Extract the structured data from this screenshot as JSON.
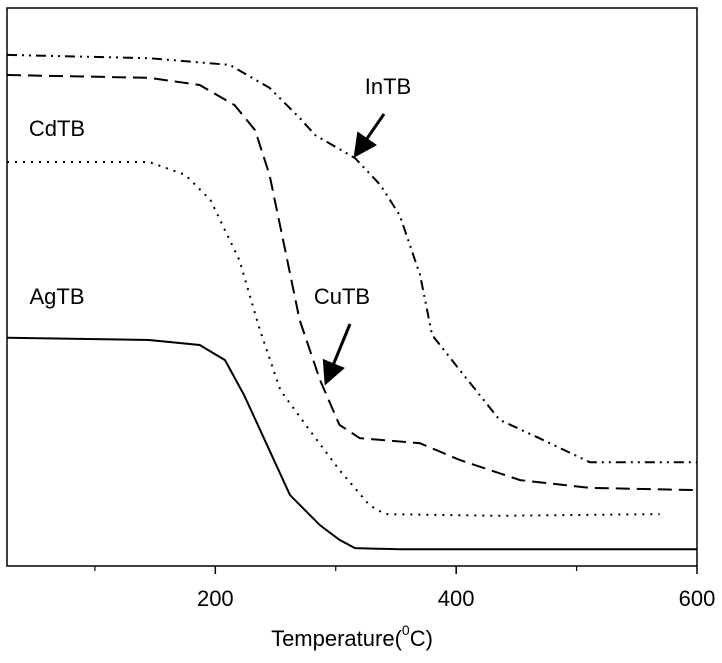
{
  "chart_data": {
    "type": "line",
    "xlabel": {
      "text": "Temperature(",
      "sup": "0",
      "after": "C)"
    },
    "xlim": [
      27,
      600
    ],
    "xticks": [
      200,
      400,
      600
    ],
    "minor_xticks": [
      100,
      300,
      500
    ],
    "ylim": [
      0,
      100
    ],
    "series": [
      {
        "name": "InTB",
        "color": "#000000",
        "dash": "dashdotdot",
        "arrow": true,
        "x": [
          27,
          145,
          212,
          245,
          270,
          283,
          316,
          337,
          353,
          370,
          380,
          403,
          436,
          469,
          511,
          600
        ],
        "values": [
          91.6,
          91.0,
          89.8,
          85.7,
          80.3,
          77.2,
          73.1,
          68.3,
          62.9,
          52.2,
          41.4,
          35.1,
          26.2,
          22.9,
          18.6,
          18.6
        ]
      },
      {
        "name": "CdTB",
        "color": "#000000",
        "dash": "dashed",
        "arrow": false,
        "x": [
          27,
          145,
          187,
          216,
          233,
          245,
          258,
          270,
          287,
          303,
          320,
          370,
          403,
          453,
          511,
          600
        ],
        "values": [
          88.0,
          87.5,
          86.2,
          82.6,
          78.1,
          70.1,
          56.6,
          44.1,
          33.3,
          25.3,
          22.9,
          22.0,
          19.0,
          15.4,
          14.0,
          13.6
        ]
      },
      {
        "name": "CuTB",
        "color": "#000000",
        "dash": "dotted",
        "arrow": true,
        "x": [
          27,
          145,
          175,
          196,
          220,
          237,
          254,
          278,
          303,
          328,
          341,
          436,
          569
        ],
        "values": [
          72.4,
          72.4,
          70.1,
          65.6,
          54.8,
          42.3,
          31.5,
          24.4,
          17.2,
          10.9,
          9.3,
          9.0,
          9.3
        ]
      },
      {
        "name": "AgTB",
        "color": "#000000",
        "dash": "solid",
        "arrow": false,
        "x": [
          27,
          145,
          187,
          208,
          224,
          241,
          262,
          287,
          303,
          316,
          353,
          600
        ],
        "values": [
          40.9,
          40.5,
          39.6,
          36.9,
          30.6,
          22.6,
          12.7,
          7.3,
          4.7,
          3.2,
          3.0,
          3.0
        ]
      }
    ]
  }
}
